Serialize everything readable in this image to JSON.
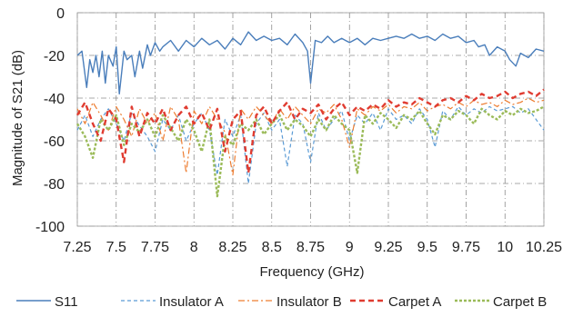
{
  "chart_data": {
    "type": "line",
    "title": "",
    "xlabel": "Frequency (GHz)",
    "ylabel": "Magnitude of S21 (dB)",
    "xlim": [
      7.25,
      10.25
    ],
    "ylim": [
      -100,
      0
    ],
    "x_ticks": [
      "7.25",
      "7.5",
      "7.75",
      "8",
      "8.25",
      "8.5",
      "8.75",
      "9",
      "9.25",
      "9.5",
      "9.75",
      "10",
      "10.25"
    ],
    "y_ticks": [
      "0",
      "-20",
      "-40",
      "-60",
      "-80",
      "-100"
    ],
    "grid": "dash-dot, both axes",
    "legend_position": "bottom",
    "series": [
      {
        "name": "S11",
        "color": "#4a7ebb",
        "style": "solid",
        "x": [
          7.25,
          7.28,
          7.31,
          7.33,
          7.35,
          7.37,
          7.39,
          7.41,
          7.43,
          7.45,
          7.48,
          7.5,
          7.52,
          7.55,
          7.57,
          7.6,
          7.62,
          7.65,
          7.67,
          7.7,
          7.72,
          7.75,
          7.78,
          7.8,
          7.85,
          7.9,
          7.95,
          8.0,
          8.05,
          8.1,
          8.15,
          8.2,
          8.25,
          8.3,
          8.35,
          8.4,
          8.45,
          8.5,
          8.55,
          8.6,
          8.65,
          8.7,
          8.73,
          8.75,
          8.78,
          8.82,
          8.86,
          8.9,
          8.95,
          9.0,
          9.05,
          9.1,
          9.15,
          9.2,
          9.25,
          9.3,
          9.35,
          9.4,
          9.45,
          9.5,
          9.55,
          9.6,
          9.65,
          9.7,
          9.75,
          9.8,
          9.83,
          9.87,
          9.9,
          9.95,
          10.0,
          10.03,
          10.07,
          10.1,
          10.15,
          10.2,
          10.25
        ],
        "y": [
          -20,
          -18,
          -35,
          -22,
          -28,
          -20,
          -30,
          -18,
          -33,
          -20,
          -25,
          -16,
          -38,
          -18,
          -22,
          -20,
          -30,
          -18,
          -26,
          -15,
          -20,
          -14,
          -18,
          -16,
          -13,
          -18,
          -13,
          -16,
          -12,
          -15,
          -13,
          -17,
          -12,
          -15,
          -9,
          -13,
          -11,
          -13,
          -12,
          -15,
          -10,
          -14,
          -18,
          -33,
          -13,
          -14,
          -11,
          -14,
          -12,
          -14,
          -12,
          -15,
          -12,
          -13,
          -12,
          -11,
          -12,
          -10,
          -12,
          -11,
          -13,
          -10,
          -12,
          -11,
          -14,
          -13,
          -16,
          -15,
          -20,
          -16,
          -18,
          -22,
          -25,
          -19,
          -21,
          -17,
          -18
        ]
      },
      {
        "name": "Insulator A",
        "color": "#5b9bd5",
        "style": "dashed",
        "x": [
          7.25,
          7.3,
          7.35,
          7.4,
          7.45,
          7.5,
          7.55,
          7.6,
          7.65,
          7.7,
          7.75,
          7.8,
          7.85,
          7.9,
          7.95,
          8.0,
          8.05,
          8.1,
          8.15,
          8.2,
          8.25,
          8.3,
          8.35,
          8.4,
          8.45,
          8.5,
          8.55,
          8.6,
          8.65,
          8.7,
          8.75,
          8.8,
          8.85,
          8.9,
          8.95,
          9.0,
          9.05,
          9.1,
          9.15,
          9.2,
          9.25,
          9.3,
          9.35,
          9.4,
          9.45,
          9.5,
          9.55,
          9.6,
          9.65,
          9.7,
          9.75,
          9.8,
          9.85,
          9.9,
          9.95,
          10.0,
          10.05,
          10.1,
          10.15,
          10.2,
          10.25
        ],
        "y": [
          -55,
          -48,
          -58,
          -50,
          -45,
          -52,
          -60,
          -47,
          -53,
          -58,
          -65,
          -50,
          -55,
          -48,
          -60,
          -52,
          -47,
          -55,
          -76,
          -50,
          -58,
          -48,
          -80,
          -52,
          -47,
          -55,
          -50,
          -72,
          -48,
          -52,
          -70,
          -47,
          -55,
          -50,
          -46,
          -60,
          -48,
          -52,
          -47,
          -55,
          -45,
          -50,
          -48,
          -52,
          -45,
          -50,
          -63,
          -46,
          -50,
          -44,
          -48,
          -45,
          -47,
          -44,
          -46,
          -45,
          -44,
          -47,
          -45,
          -50,
          -55
        ]
      },
      {
        "name": "Insulator B",
        "color": "#ed7d31",
        "style": "dash-dot",
        "x": [
          7.25,
          7.3,
          7.35,
          7.4,
          7.45,
          7.5,
          7.55,
          7.6,
          7.65,
          7.7,
          7.75,
          7.8,
          7.85,
          7.9,
          7.95,
          8.0,
          8.05,
          8.1,
          8.15,
          8.2,
          8.25,
          8.3,
          8.35,
          8.4,
          8.45,
          8.5,
          8.55,
          8.6,
          8.65,
          8.7,
          8.75,
          8.8,
          8.85,
          8.9,
          8.95,
          9.0,
          9.05,
          9.1,
          9.15,
          9.2,
          9.25,
          9.3,
          9.35,
          9.4,
          9.45,
          9.5,
          9.55,
          9.6,
          9.65,
          9.7,
          9.75,
          9.8,
          9.85,
          9.9,
          9.95,
          10.0,
          10.05,
          10.1,
          10.15,
          10.2,
          10.25
        ],
        "y": [
          -45,
          -52,
          -42,
          -48,
          -55,
          -44,
          -50,
          -58,
          -45,
          -52,
          -47,
          -60,
          -44,
          -50,
          -75,
          -46,
          -52,
          -44,
          -50,
          -56,
          -76,
          -45,
          -50,
          -44,
          -48,
          -52,
          -45,
          -50,
          -44,
          -48,
          -52,
          -45,
          -47,
          -43,
          -50,
          -63,
          -45,
          -48,
          -44,
          -46,
          -43,
          -47,
          -44,
          -45,
          -42,
          -46,
          -44,
          -43,
          -45,
          -42,
          -44,
          -41,
          -43,
          -42,
          -44,
          -41,
          -43,
          -42,
          -40,
          -42,
          -41
        ]
      },
      {
        "name": "Carpet A",
        "color": "#e03c31",
        "style": "long-dash",
        "x": [
          7.25,
          7.3,
          7.35,
          7.4,
          7.45,
          7.5,
          7.55,
          7.6,
          7.65,
          7.7,
          7.75,
          7.8,
          7.85,
          7.9,
          7.95,
          8.0,
          8.05,
          8.1,
          8.15,
          8.2,
          8.25,
          8.3,
          8.35,
          8.4,
          8.45,
          8.5,
          8.55,
          8.6,
          8.65,
          8.7,
          8.75,
          8.8,
          8.85,
          8.9,
          8.95,
          9.0,
          9.05,
          9.1,
          9.15,
          9.2,
          9.25,
          9.3,
          9.35,
          9.4,
          9.45,
          9.5,
          9.55,
          9.6,
          9.65,
          9.7,
          9.75,
          9.8,
          9.85,
          9.9,
          9.95,
          10.0,
          10.05,
          10.1,
          10.15,
          10.2,
          10.25
        ],
        "y": [
          -48,
          -42,
          -52,
          -60,
          -45,
          -50,
          -70,
          -44,
          -58,
          -47,
          -52,
          -45,
          -55,
          -48,
          -44,
          -52,
          -47,
          -55,
          -45,
          -65,
          -50,
          -46,
          -75,
          -48,
          -44,
          -52,
          -46,
          -42,
          -50,
          -45,
          -47,
          -43,
          -50,
          -45,
          -42,
          -48,
          -44,
          -46,
          -43,
          -45,
          -41,
          -44,
          -42,
          -43,
          -40,
          -42,
          -44,
          -41,
          -40,
          -42,
          -39,
          -41,
          -38,
          -40,
          -39,
          -37,
          -40,
          -38,
          -37,
          -39,
          -36
        ]
      },
      {
        "name": "Carpet B",
        "color": "#9bbb59",
        "style": "short-dash",
        "x": [
          7.25,
          7.3,
          7.35,
          7.4,
          7.45,
          7.5,
          7.55,
          7.6,
          7.65,
          7.7,
          7.75,
          7.8,
          7.85,
          7.9,
          7.95,
          8.0,
          8.05,
          8.1,
          8.15,
          8.2,
          8.25,
          8.3,
          8.35,
          8.4,
          8.45,
          8.5,
          8.55,
          8.6,
          8.65,
          8.7,
          8.75,
          8.8,
          8.85,
          8.9,
          8.95,
          9.0,
          9.05,
          9.1,
          9.15,
          9.2,
          9.25,
          9.3,
          9.35,
          9.4,
          9.45,
          9.5,
          9.55,
          9.6,
          9.65,
          9.7,
          9.75,
          9.8,
          9.85,
          9.9,
          9.95,
          10.0,
          10.05,
          10.1,
          10.15,
          10.2,
          10.25
        ],
        "y": [
          -52,
          -58,
          -68,
          -50,
          -55,
          -48,
          -62,
          -52,
          -56,
          -50,
          -58,
          -48,
          -54,
          -60,
          -50,
          -55,
          -65,
          -50,
          -86,
          -58,
          -62,
          -52,
          -55,
          -50,
          -57,
          -52,
          -48,
          -55,
          -50,
          -53,
          -58,
          -50,
          -55,
          -48,
          -52,
          -55,
          -75,
          -48,
          -52,
          -47,
          -50,
          -54,
          -48,
          -50,
          -46,
          -52,
          -57,
          -48,
          -50,
          -46,
          -48,
          -52,
          -45,
          -48,
          -50,
          -46,
          -48,
          -45,
          -47,
          -46,
          -44
        ]
      }
    ]
  }
}
